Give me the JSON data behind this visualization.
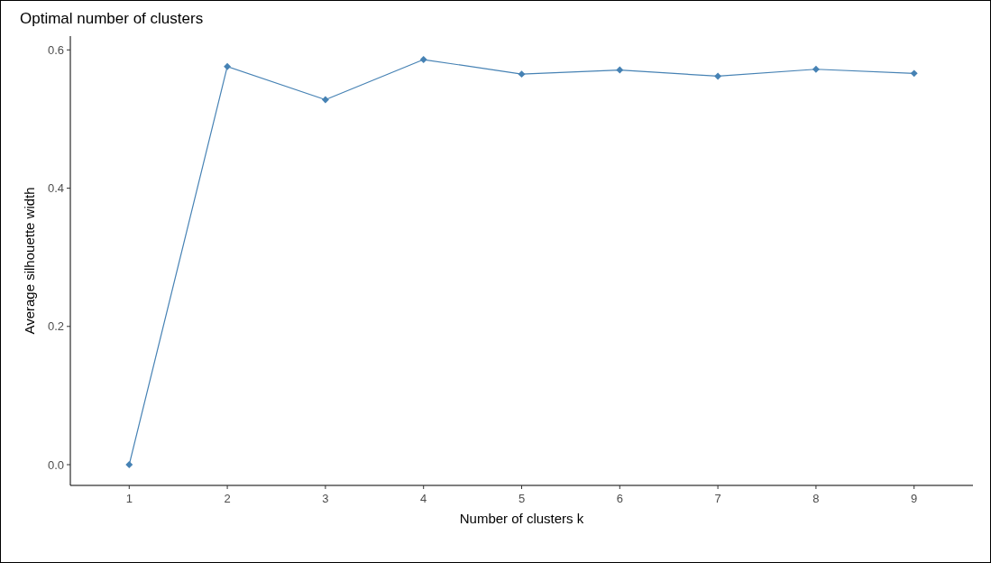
{
  "chart_data": {
    "type": "line",
    "title": "Optimal number of clusters",
    "xlabel": "Number of clusters k",
    "ylabel": "Average silhouette width",
    "categories": [
      "1",
      "2",
      "3",
      "4",
      "5",
      "6",
      "7",
      "8",
      "9"
    ],
    "series": [
      {
        "color": "#4682b4",
        "values": [
          0,
          0.576,
          0.528,
          0.586,
          0.565,
          0.571,
          0.562,
          0.572,
          0.566
        ]
      }
    ],
    "ylim": [
      -0.03,
      0.62
    ],
    "yticks": [
      {
        "value": 0,
        "label": "0.0"
      },
      {
        "value": 0.2,
        "label": "0.2"
      },
      {
        "value": 0.4,
        "label": "0.4"
      },
      {
        "value": 0.6,
        "label": "0.6"
      }
    ],
    "grid": false,
    "marker": "diamond",
    "line_style": "solid"
  }
}
